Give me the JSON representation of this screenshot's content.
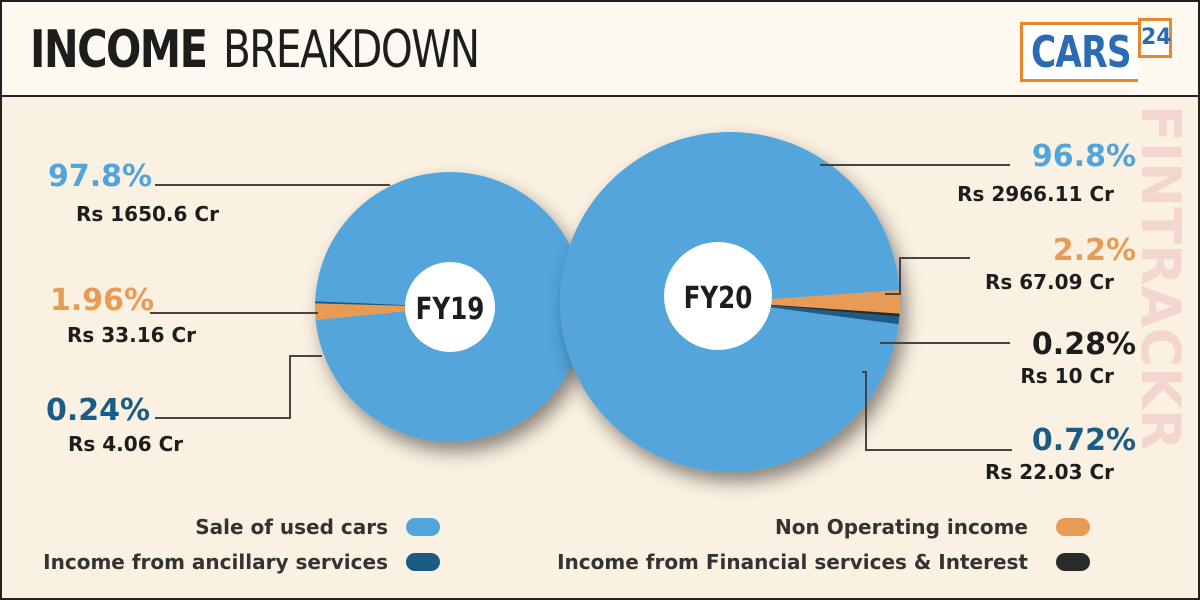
{
  "header": {
    "title_bold": "INCOME",
    "title_light": "BREAKDOWN",
    "logo_text": "CARS",
    "logo_num": "24"
  },
  "watermark": "FINTRACKR",
  "colors": {
    "sale": "#52a5dc",
    "nonop": "#e89b54",
    "ancillary": "#1a5c86",
    "financial": "#2a2a2a"
  },
  "chart_data": [
    {
      "type": "pie",
      "title": "FY19",
      "slices": [
        {
          "name": "Sale of used cars",
          "percent": 97.8,
          "percent_label": "97.8%",
          "amount_label": "Rs 1650.6 Cr"
        },
        {
          "name": "Non Operating income",
          "percent": 1.96,
          "percent_label": "1.96%",
          "amount_label": "Rs 33.16 Cr"
        },
        {
          "name": "Income from ancillary services",
          "percent": 0.24,
          "percent_label": "0.24%",
          "amount_label": "Rs 4.06 Cr"
        }
      ]
    },
    {
      "type": "pie",
      "title": "FY20",
      "slices": [
        {
          "name": "Sale of used cars",
          "percent": 96.8,
          "percent_label": "96.8%",
          "amount_label": "Rs 2966.11 Cr"
        },
        {
          "name": "Non Operating income",
          "percent": 2.2,
          "percent_label": "2.2%",
          "amount_label": "Rs 67.09 Cr"
        },
        {
          "name": "Income from Financial services & Interest",
          "percent": 0.28,
          "percent_label": "0.28%",
          "amount_label": "Rs 10 Cr"
        },
        {
          "name": "Income from ancillary services",
          "percent": 0.72,
          "percent_label": "0.72%",
          "amount_label": "Rs 22.03 Cr"
        }
      ]
    }
  ],
  "legend": [
    {
      "label": "Sale of used cars",
      "color": "#52a5dc"
    },
    {
      "label": "Income from ancillary services",
      "color": "#1a5c86"
    },
    {
      "label": "Non Operating income",
      "color": "#e89b54"
    },
    {
      "label": "Income from Financial services & Interest",
      "color": "#2a2a2a"
    }
  ]
}
